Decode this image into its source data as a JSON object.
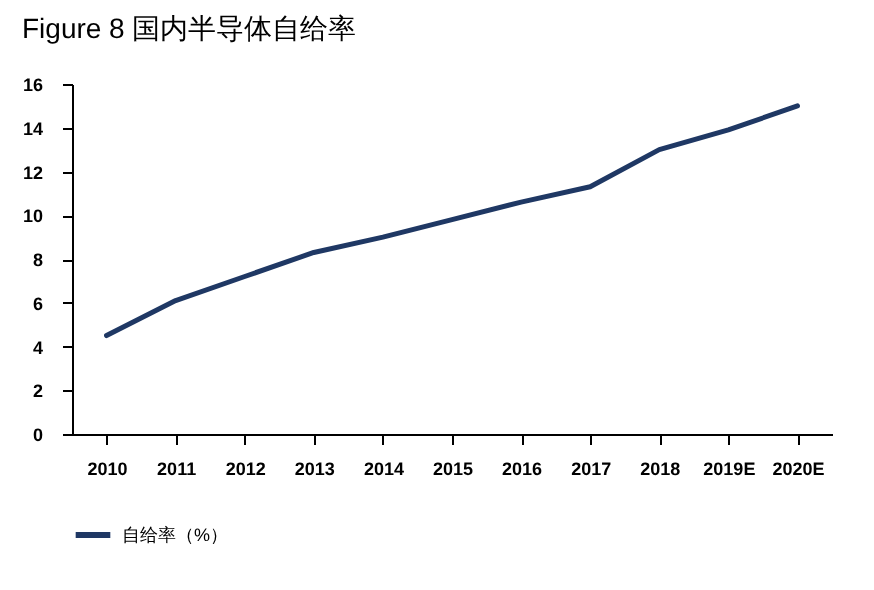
{
  "chart_data": {
    "type": "line",
    "title": "Figure 8  国内半导体自给率",
    "categories": [
      "2010",
      "2011",
      "2012",
      "2013",
      "2014",
      "2015",
      "2016",
      "2017",
      "2018",
      "2019E",
      "2020E"
    ],
    "series": [
      {
        "name": "自给率（%）",
        "color": "#1f3864",
        "values": [
          4.5,
          6.1,
          7.2,
          8.3,
          9.0,
          9.8,
          10.6,
          11.3,
          13.0,
          13.9,
          15.0
        ]
      }
    ],
    "ylim": [
      0,
      16
    ],
    "yticks": [
      0,
      2,
      4,
      6,
      8,
      10,
      12,
      14,
      16
    ],
    "grid": false,
    "legend": "bottom",
    "marker": "none",
    "line_style": "solid"
  }
}
